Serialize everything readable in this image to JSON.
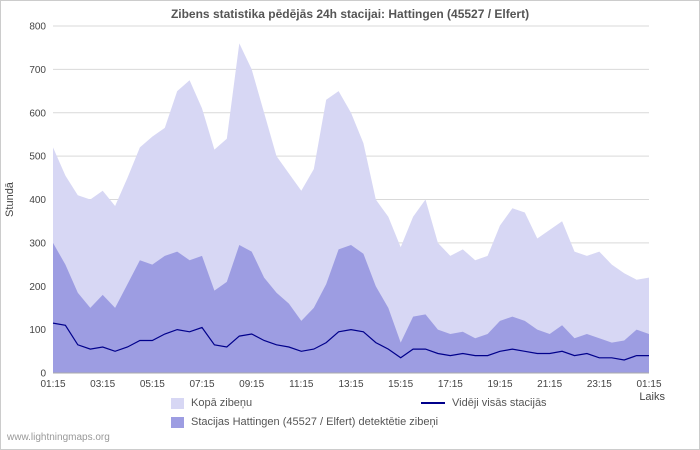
{
  "watermark": "www.lightningmaps.org",
  "chart_data": {
    "type": "area",
    "title": "Zibens statistika pēdējās 24h stacijai: Hattingen (45527 / Elfert)",
    "ylabel": "Stundā",
    "xlabel": "Laiks",
    "ylim": [
      0,
      800
    ],
    "grid": true,
    "legend_position": "bottom",
    "y_ticks": [
      0,
      100,
      200,
      300,
      400,
      500,
      600,
      700,
      800
    ],
    "x_ticks": [
      "01:15",
      "03:15",
      "05:15",
      "07:15",
      "09:15",
      "11:15",
      "13:15",
      "15:15",
      "17:15",
      "19:15",
      "21:15",
      "23:15",
      "01:15"
    ],
    "x_step_minutes": 30,
    "colors": {
      "grid": "#d9d9d9",
      "axis": "#aaaaaa",
      "tick_text": "#454545",
      "title_text": "#555555",
      "background": "#ffffff"
    },
    "series": [
      {
        "name": "Kopā zibeņu",
        "type": "area",
        "color": "#d7d7f4",
        "values": [
          520,
          455,
          410,
          400,
          420,
          385,
          450,
          520,
          545,
          565,
          650,
          675,
          610,
          515,
          540,
          760,
          700,
          600,
          500,
          460,
          420,
          470,
          630,
          650,
          600,
          530,
          400,
          360,
          290,
          360,
          400,
          300,
          270,
          285,
          260,
          270,
          340,
          380,
          370,
          310,
          330,
          350,
          280,
          270,
          280,
          250,
          230,
          215,
          220
        ]
      },
      {
        "name": "Stacijas Hattingen (45527 / Elfert) detektētie zibeņi",
        "type": "area",
        "color": "#9d9de2",
        "values": [
          300,
          250,
          185,
          150,
          180,
          150,
          205,
          260,
          250,
          270,
          280,
          260,
          270,
          190,
          210,
          295,
          280,
          220,
          185,
          160,
          120,
          150,
          205,
          285,
          295,
          275,
          200,
          150,
          70,
          130,
          135,
          100,
          90,
          95,
          80,
          90,
          120,
          130,
          120,
          100,
          90,
          110,
          80,
          90,
          80,
          70,
          75,
          100,
          90
        ]
      },
      {
        "name": "Vidēji visās stacijās",
        "type": "line",
        "color": "#00008b",
        "values": [
          115,
          110,
          65,
          55,
          60,
          50,
          60,
          75,
          75,
          90,
          100,
          95,
          105,
          65,
          60,
          85,
          90,
          75,
          65,
          60,
          50,
          55,
          70,
          95,
          100,
          95,
          70,
          55,
          35,
          55,
          55,
          45,
          40,
          45,
          40,
          40,
          50,
          55,
          50,
          45,
          45,
          50,
          40,
          45,
          35,
          35,
          30,
          40,
          40
        ]
      }
    ]
  }
}
